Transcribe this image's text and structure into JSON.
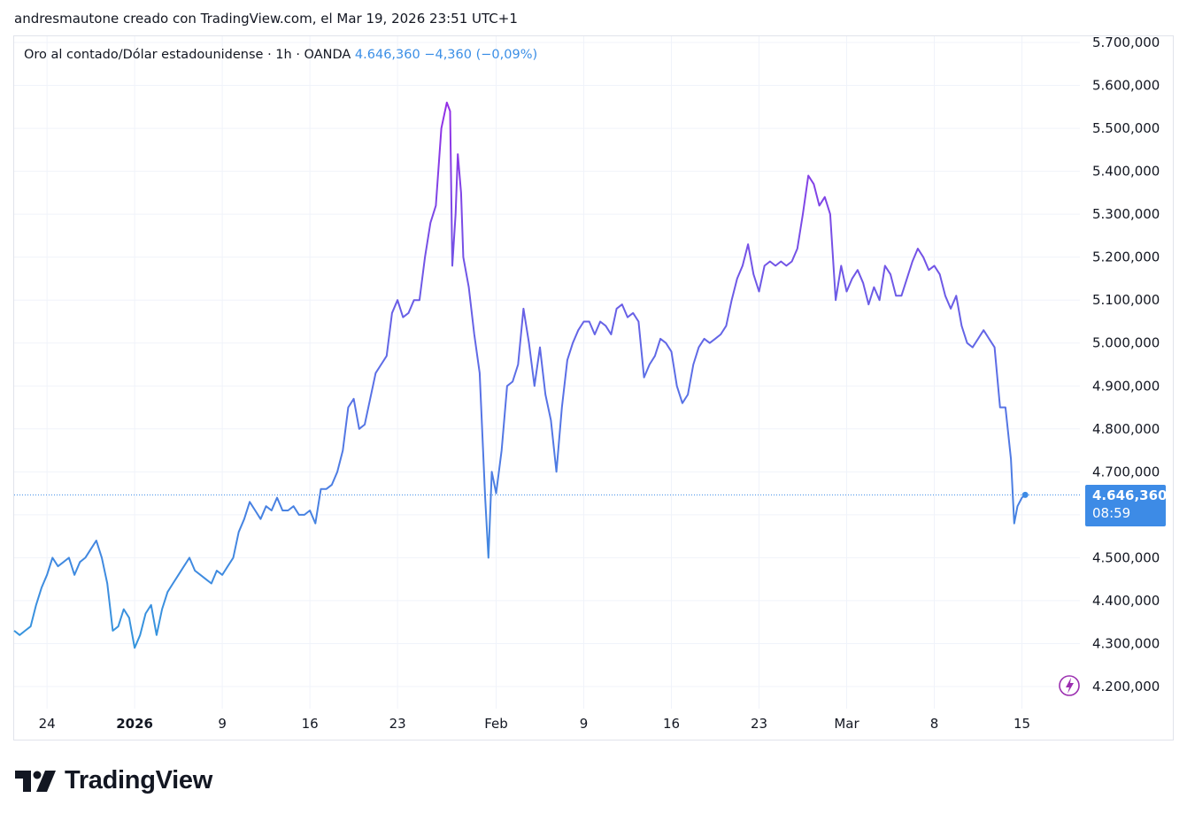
{
  "header": {
    "attribution": "andresmautone creado con TradingView.com, el Mar 19, 2026 23:51 UTC+1"
  },
  "legend": {
    "symbol": "Oro al contado/Dólar estadounidense",
    "sep1": "·",
    "interval": "1h",
    "sep2": "·",
    "exchange": "OANDA",
    "last": "4.646,360",
    "change": "−4,360 (−0,09%)"
  },
  "price_label": {
    "price": "4.646,360",
    "countdown": "08:59"
  },
  "logo": {
    "wordmark": "TradingView",
    "icon": "tradingview-logo-icon"
  },
  "colors": {
    "line_start": "#2f9bdc",
    "line_mid": "#5b6fe6",
    "line_high": "#a020e6",
    "price_label_bg": "#3d8be6",
    "axis_text": "#131722",
    "grid": "#f0f3fa",
    "flash_icon": "#9b2fb0"
  },
  "chart_data": {
    "type": "line",
    "title": "Oro al contado/Dólar estadounidense · 1h · OANDA",
    "xlabel": "",
    "ylabel": "",
    "ylim": [
      4150000,
      5740000
    ],
    "y_ticks": [
      "4.200,000",
      "4.300,000",
      "4.400,000",
      "4.500,000",
      "4.600,000",
      "4.700,000",
      "4.800,000",
      "4.900,000",
      "5.000,000",
      "5.100,000",
      "5.200,000",
      "5.300,000",
      "5.400,000",
      "5.500,000",
      "5.600,000",
      "5.700,000"
    ],
    "y_tick_values": [
      4200000,
      4300000,
      4400000,
      4500000,
      4600000,
      4700000,
      4800000,
      4900000,
      5000000,
      5100000,
      5200000,
      5300000,
      5400000,
      5500000,
      5600000,
      5700000
    ],
    "x_ticks": [
      "24",
      "2026",
      "9",
      "16",
      "23",
      "Feb",
      "9",
      "16",
      "23",
      "Mar",
      "8",
      "15"
    ],
    "x_tick_days": [
      3,
      11,
      19,
      27,
      35,
      44,
      52,
      60,
      68,
      76,
      84,
      92
    ],
    "x_unit": "days since Dec 21, 2025",
    "last_price": 4646360,
    "grid": true,
    "series": [
      {
        "name": "Oro al contado/Dólar estadounidense",
        "points": [
          [
            0,
            4330000
          ],
          [
            0.5,
            4320000
          ],
          [
            1,
            4330000
          ],
          [
            1.5,
            4340000
          ],
          [
            2,
            4390000
          ],
          [
            2.5,
            4430000
          ],
          [
            3,
            4460000
          ],
          [
            3.5,
            4500000
          ],
          [
            4,
            4480000
          ],
          [
            4.5,
            4490000
          ],
          [
            5,
            4500000
          ],
          [
            5.5,
            4460000
          ],
          [
            6,
            4490000
          ],
          [
            6.5,
            4500000
          ],
          [
            7,
            4520000
          ],
          [
            7.5,
            4540000
          ],
          [
            8,
            4500000
          ],
          [
            8.5,
            4440000
          ],
          [
            9,
            4330000
          ],
          [
            9.5,
            4340000
          ],
          [
            10,
            4380000
          ],
          [
            10.5,
            4360000
          ],
          [
            11,
            4290000
          ],
          [
            11.5,
            4320000
          ],
          [
            12,
            4370000
          ],
          [
            12.5,
            4390000
          ],
          [
            13,
            4320000
          ],
          [
            13.5,
            4380000
          ],
          [
            14,
            4420000
          ],
          [
            14.5,
            4440000
          ],
          [
            15,
            4460000
          ],
          [
            15.5,
            4480000
          ],
          [
            16,
            4500000
          ],
          [
            16.5,
            4470000
          ],
          [
            17,
            4460000
          ],
          [
            17.5,
            4450000
          ],
          [
            18,
            4440000
          ],
          [
            18.5,
            4470000
          ],
          [
            19,
            4460000
          ],
          [
            19.5,
            4480000
          ],
          [
            20,
            4500000
          ],
          [
            20.5,
            4560000
          ],
          [
            21,
            4590000
          ],
          [
            21.5,
            4630000
          ],
          [
            22,
            4610000
          ],
          [
            22.5,
            4590000
          ],
          [
            23,
            4620000
          ],
          [
            23.5,
            4610000
          ],
          [
            24,
            4640000
          ],
          [
            24.5,
            4610000
          ],
          [
            25,
            4610000
          ],
          [
            25.5,
            4620000
          ],
          [
            26,
            4600000
          ],
          [
            26.5,
            4600000
          ],
          [
            27,
            4610000
          ],
          [
            27.5,
            4580000
          ],
          [
            28,
            4660000
          ],
          [
            28.5,
            4660000
          ],
          [
            29,
            4670000
          ],
          [
            29.5,
            4700000
          ],
          [
            30,
            4750000
          ],
          [
            30.5,
            4850000
          ],
          [
            31,
            4870000
          ],
          [
            31.5,
            4800000
          ],
          [
            32,
            4810000
          ],
          [
            32.5,
            4870000
          ],
          [
            33,
            4930000
          ],
          [
            33.5,
            4950000
          ],
          [
            34,
            4970000
          ],
          [
            34.5,
            5070000
          ],
          [
            35,
            5100000
          ],
          [
            35.5,
            5060000
          ],
          [
            36,
            5070000
          ],
          [
            36.5,
            5100000
          ],
          [
            37,
            5100000
          ],
          [
            37.5,
            5200000
          ],
          [
            38,
            5280000
          ],
          [
            38.5,
            5320000
          ],
          [
            39,
            5500000
          ],
          [
            39.5,
            5560000
          ],
          [
            39.8,
            5540000
          ],
          [
            40,
            5180000
          ],
          [
            40.3,
            5300000
          ],
          [
            40.5,
            5440000
          ],
          [
            40.8,
            5350000
          ],
          [
            41,
            5200000
          ],
          [
            41.5,
            5130000
          ],
          [
            42,
            5020000
          ],
          [
            42.5,
            4930000
          ],
          [
            43,
            4640000
          ],
          [
            43.3,
            4500000
          ],
          [
            43.6,
            4700000
          ],
          [
            44,
            4650000
          ],
          [
            44.5,
            4750000
          ],
          [
            45,
            4900000
          ],
          [
            45.5,
            4910000
          ],
          [
            46,
            4950000
          ],
          [
            46.5,
            5080000
          ],
          [
            47,
            5000000
          ],
          [
            47.5,
            4900000
          ],
          [
            48,
            4990000
          ],
          [
            48.5,
            4880000
          ],
          [
            49,
            4820000
          ],
          [
            49.5,
            4700000
          ],
          [
            50,
            4850000
          ],
          [
            50.5,
            4960000
          ],
          [
            51,
            5000000
          ],
          [
            51.5,
            5030000
          ],
          [
            52,
            5050000
          ],
          [
            52.5,
            5050000
          ],
          [
            53,
            5020000
          ],
          [
            53.5,
            5050000
          ],
          [
            54,
            5040000
          ],
          [
            54.5,
            5020000
          ],
          [
            55,
            5080000
          ],
          [
            55.5,
            5090000
          ],
          [
            56,
            5060000
          ],
          [
            56.5,
            5070000
          ],
          [
            57,
            5050000
          ],
          [
            57.5,
            4920000
          ],
          [
            58,
            4950000
          ],
          [
            58.5,
            4970000
          ],
          [
            59,
            5010000
          ],
          [
            59.5,
            5000000
          ],
          [
            60,
            4980000
          ],
          [
            60.5,
            4900000
          ],
          [
            61,
            4860000
          ],
          [
            61.5,
            4880000
          ],
          [
            62,
            4950000
          ],
          [
            62.5,
            4990000
          ],
          [
            63,
            5010000
          ],
          [
            63.5,
            5000000
          ],
          [
            64,
            5010000
          ],
          [
            64.5,
            5020000
          ],
          [
            65,
            5040000
          ],
          [
            65.5,
            5100000
          ],
          [
            66,
            5150000
          ],
          [
            66.5,
            5180000
          ],
          [
            67,
            5230000
          ],
          [
            67.5,
            5160000
          ],
          [
            68,
            5120000
          ],
          [
            68.5,
            5180000
          ],
          [
            69,
            5190000
          ],
          [
            69.5,
            5180000
          ],
          [
            70,
            5190000
          ],
          [
            70.5,
            5180000
          ],
          [
            71,
            5190000
          ],
          [
            71.5,
            5220000
          ],
          [
            72,
            5300000
          ],
          [
            72.5,
            5390000
          ],
          [
            73,
            5370000
          ],
          [
            73.5,
            5320000
          ],
          [
            74,
            5340000
          ],
          [
            74.5,
            5300000
          ],
          [
            75,
            5100000
          ],
          [
            75.5,
            5180000
          ],
          [
            76,
            5120000
          ],
          [
            76.5,
            5150000
          ],
          [
            77,
            5170000
          ],
          [
            77.5,
            5140000
          ],
          [
            78,
            5090000
          ],
          [
            78.5,
            5130000
          ],
          [
            79,
            5100000
          ],
          [
            79.5,
            5180000
          ],
          [
            80,
            5160000
          ],
          [
            80.5,
            5110000
          ],
          [
            81,
            5110000
          ],
          [
            81.5,
            5150000
          ],
          [
            82,
            5190000
          ],
          [
            82.5,
            5220000
          ],
          [
            83,
            5200000
          ],
          [
            83.5,
            5170000
          ],
          [
            84,
            5180000
          ],
          [
            84.5,
            5160000
          ],
          [
            85,
            5110000
          ],
          [
            85.5,
            5080000
          ],
          [
            86,
            5110000
          ],
          [
            86.5,
            5040000
          ],
          [
            87,
            5000000
          ],
          [
            87.5,
            4990000
          ],
          [
            88,
            5010000
          ],
          [
            88.5,
            5030000
          ],
          [
            89,
            5010000
          ],
          [
            89.5,
            4990000
          ],
          [
            90,
            4850000
          ],
          [
            90.5,
            4850000
          ],
          [
            91,
            4730000
          ],
          [
            91.3,
            4580000
          ],
          [
            91.6,
            4620000
          ],
          [
            92,
            4640000
          ],
          [
            92.3,
            4646360
          ]
        ]
      }
    ]
  }
}
